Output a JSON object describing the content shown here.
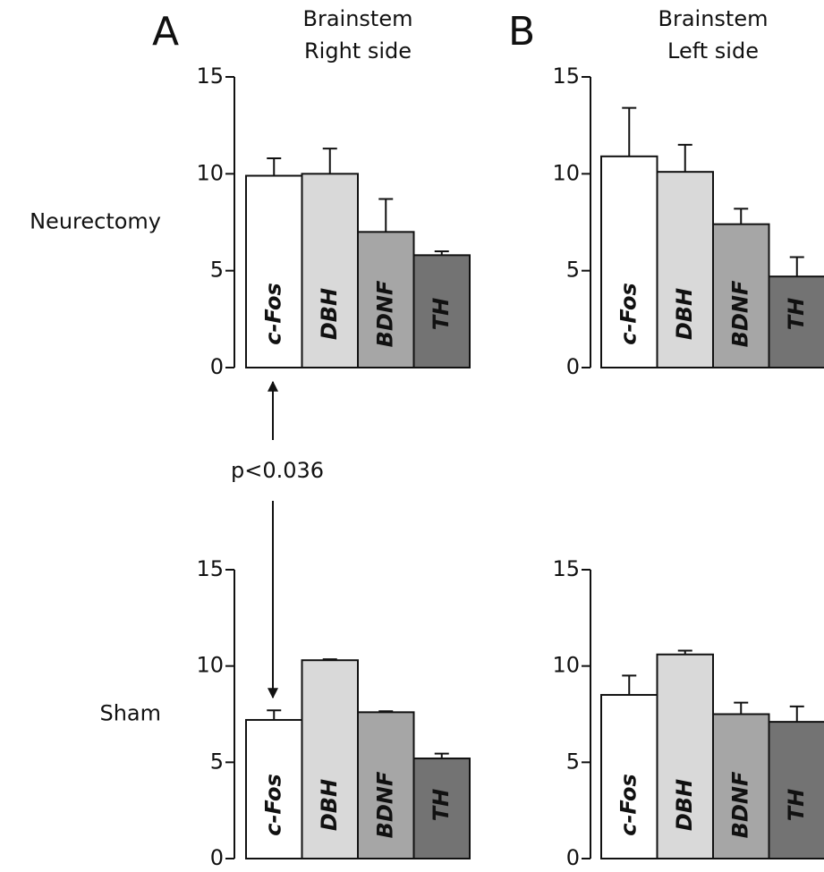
{
  "chart_data": [
    {
      "type": "bar",
      "panel_label": "A",
      "title": [
        "Brainstem",
        "Right side"
      ],
      "row_label": "Neurectomy",
      "categories": [
        "c-Fos",
        "DBH",
        "BDNF",
        "TH"
      ],
      "values": [
        9.9,
        10,
        7,
        5.8
      ],
      "errors": [
        0.9,
        1.3,
        1.7,
        0.2
      ],
      "colors": [
        "#ffffff",
        "#d9d9d9",
        "#a6a6a6",
        "#737373"
      ],
      "ylim": [
        0,
        15
      ],
      "yticks": [
        0,
        5,
        10,
        15
      ]
    },
    {
      "type": "bar",
      "panel_label": "B",
      "title": [
        "Brainstem",
        "Left side"
      ],
      "categories": [
        "c-Fos",
        "DBH",
        "BDNF",
        "TH"
      ],
      "values": [
        10.9,
        10.1,
        7.4,
        4.7
      ],
      "errors": [
        2.5,
        1.4,
        0.8,
        1
      ],
      "colors": [
        "#ffffff",
        "#d9d9d9",
        "#a6a6a6",
        "#737373"
      ],
      "ylim": [
        0,
        15
      ],
      "yticks": [
        0,
        5,
        10,
        15
      ]
    },
    {
      "type": "bar",
      "row_label": "Sham",
      "annotation": "p<0.036",
      "categories": [
        "c-Fos",
        "DBH",
        "BDNF",
        "TH"
      ],
      "values": [
        7.2,
        10.3,
        7.6,
        5.2
      ],
      "errors": [
        0.5,
        0.05,
        0.05,
        0.25
      ],
      "colors": [
        "#ffffff",
        "#d9d9d9",
        "#a6a6a6",
        "#737373"
      ],
      "ylim": [
        0,
        15
      ],
      "yticks": [
        0,
        5,
        10,
        15
      ]
    },
    {
      "type": "bar",
      "categories": [
        "c-Fos",
        "DBH",
        "BDNF",
        "TH"
      ],
      "values": [
        8.5,
        10.6,
        7.5,
        7.1
      ],
      "errors": [
        1,
        0.2,
        0.6,
        0.8
      ],
      "colors": [
        "#ffffff",
        "#d9d9d9",
        "#a6a6a6",
        "#737373"
      ],
      "ylim": [
        0,
        15
      ],
      "yticks": [
        0,
        5,
        10,
        15
      ]
    }
  ]
}
